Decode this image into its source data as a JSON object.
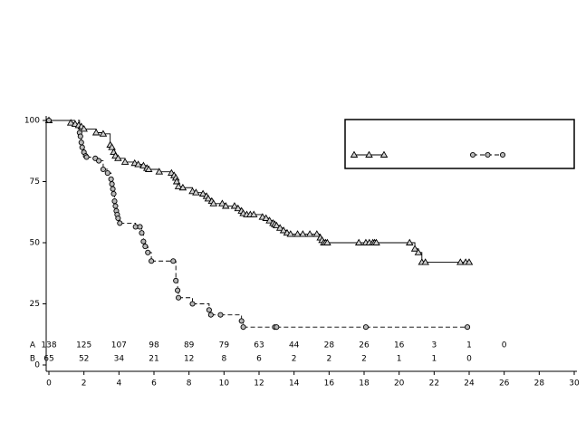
{
  "chart_data": {
    "type": "step",
    "xlim": [
      0,
      30
    ],
    "xticks": [
      0,
      2,
      4,
      6,
      8,
      10,
      12,
      14,
      16,
      18,
      20,
      22,
      24,
      26,
      28,
      30
    ],
    "ylim": [
      0,
      100
    ],
    "yticks": [
      0,
      25,
      50,
      75,
      100
    ],
    "legend": "upper right",
    "series": [
      {
        "marker": "triangle",
        "line_style": "solid",
        "color": "#000000",
        "fill": "#d0d0d0",
        "x": [
          0,
          1.25,
          1.5,
          1.7,
          1.85,
          2.0,
          2.7,
          3.1,
          3.5,
          3.6,
          3.7,
          3.8,
          3.95,
          4.35,
          4.9,
          5.1,
          5.4,
          5.6,
          5.7,
          6.3,
          7.0,
          7.15,
          7.25,
          7.3,
          7.4,
          7.65,
          8.2,
          8.4,
          8.8,
          9.0,
          9.1,
          9.3,
          9.4,
          9.9,
          10.1,
          10.6,
          10.8,
          11.0,
          11.1,
          11.3,
          11.5,
          11.7,
          12.2,
          12.4,
          12.6,
          12.8,
          12.9,
          13.0,
          13.2,
          13.4,
          13.6,
          13.8,
          14.2,
          14.5,
          14.9,
          15.3,
          15.5,
          15.6,
          15.7,
          15.8,
          15.9,
          17.7,
          18.1,
          18.3,
          18.5,
          18.6,
          18.7,
          20.6,
          20.9,
          21.1,
          21.3,
          21.5,
          23.5,
          23.8,
          24.0
        ],
        "values": [
          100,
          99,
          98.5,
          98,
          97.5,
          96.5,
          95,
          94.5,
          90,
          89,
          87,
          85.5,
          84.5,
          83,
          82.5,
          82,
          81.5,
          80.5,
          80,
          79,
          78.5,
          77.5,
          76.5,
          75,
          73,
          72.5,
          71,
          70.5,
          70,
          69,
          68,
          67,
          66,
          66,
          65,
          65,
          64,
          63,
          62,
          61.5,
          61.5,
          61.5,
          60.5,
          60,
          59,
          58,
          57.5,
          57,
          56,
          55,
          54,
          53.5,
          53.5,
          53.5,
          53.5,
          53.5,
          52,
          51,
          50,
          50,
          50,
          50,
          50,
          50,
          50,
          50,
          50,
          50,
          47.5,
          46,
          42,
          42,
          42,
          42,
          42
        ]
      },
      {
        "marker": "circle",
        "line_style": "dashed",
        "color": "#000000",
        "fill": "#b8b8b8",
        "x": [
          0,
          1.75,
          1.8,
          1.85,
          1.9,
          2.0,
          2.1,
          2.15,
          2.65,
          2.85,
          3.1,
          3.35,
          3.55,
          3.6,
          3.65,
          3.7,
          3.75,
          3.8,
          3.85,
          3.9,
          3.95,
          4.05,
          4.95,
          5.2,
          5.3,
          5.4,
          5.5,
          5.65,
          5.85,
          7.1,
          7.25,
          7.35,
          7.4,
          8.2,
          9.15,
          9.25,
          9.8,
          11.0,
          11.1,
          12.9,
          13.0,
          18.1,
          23.9
        ],
        "values": [
          100,
          95,
          93.5,
          91,
          89,
          87,
          85.5,
          85,
          84.5,
          83.5,
          80,
          78.5,
          76,
          74,
          72,
          70,
          67,
          65,
          63,
          61.5,
          60,
          58,
          56.5,
          56.5,
          54,
          50.5,
          48.5,
          46,
          42.5,
          42.5,
          34.5,
          30.5,
          27.5,
          25,
          22.5,
          20.5,
          20.5,
          18,
          15.5,
          15.5,
          15.5,
          15.5,
          15.5
        ]
      }
    ],
    "risk_table": [
      {
        "label": "A",
        "counts": [
          138,
          125,
          107,
          98,
          89,
          79,
          63,
          44,
          28,
          26,
          16,
          3,
          1,
          0
        ]
      },
      {
        "label": "B",
        "counts": [
          65,
          52,
          34,
          21,
          12,
          8,
          6,
          2,
          2,
          2,
          1,
          1,
          0
        ]
      }
    ]
  }
}
